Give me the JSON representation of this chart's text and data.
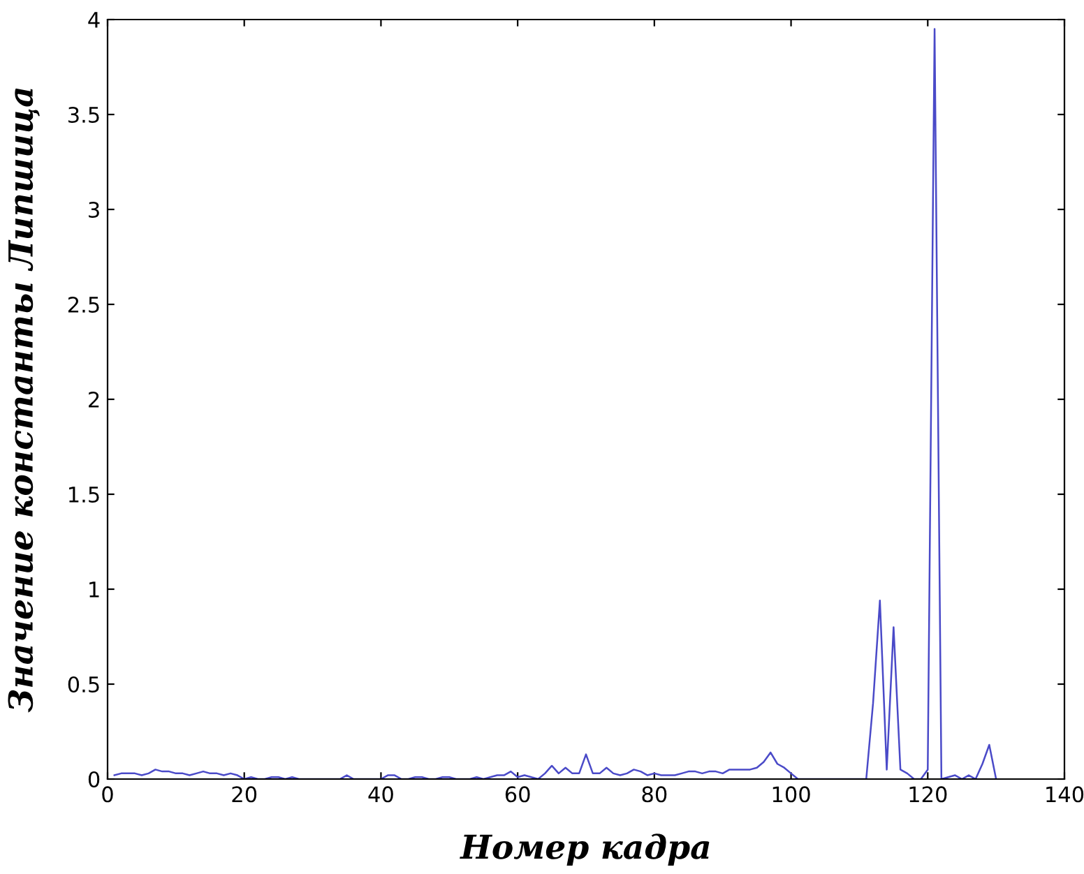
{
  "chart_data": {
    "type": "line",
    "xlabel": "Номер кадра",
    "ylabel": "Значение константы Липшица",
    "x": [
      1,
      2,
      3,
      4,
      5,
      6,
      7,
      8,
      9,
      10,
      11,
      12,
      13,
      14,
      15,
      16,
      17,
      18,
      19,
      20,
      21,
      22,
      23,
      24,
      25,
      26,
      27,
      28,
      29,
      30,
      31,
      32,
      33,
      34,
      35,
      36,
      37,
      38,
      39,
      40,
      41,
      42,
      43,
      44,
      45,
      46,
      47,
      48,
      49,
      50,
      51,
      52,
      53,
      54,
      55,
      56,
      57,
      58,
      59,
      60,
      61,
      62,
      63,
      64,
      65,
      66,
      67,
      68,
      69,
      70,
      71,
      72,
      73,
      74,
      75,
      76,
      77,
      78,
      79,
      80,
      81,
      82,
      83,
      84,
      85,
      86,
      87,
      88,
      89,
      90,
      91,
      92,
      93,
      94,
      95,
      96,
      97,
      98,
      99,
      100,
      101,
      102,
      103,
      104,
      105,
      106,
      107,
      108,
      109,
      110,
      111,
      112,
      113,
      114,
      115,
      116,
      117,
      118,
      119,
      120,
      121,
      122,
      123,
      124,
      125,
      126,
      127,
      128,
      129,
      130
    ],
    "series": [
      {
        "color": "#4a4ac8",
        "values": [
          0.02,
          0.03,
          0.03,
          0.03,
          0.02,
          0.03,
          0.05,
          0.04,
          0.04,
          0.03,
          0.03,
          0.02,
          0.03,
          0.04,
          0.03,
          0.03,
          0.02,
          0.03,
          0.02,
          0.0,
          0.01,
          0.0,
          0.0,
          0.01,
          0.01,
          0.0,
          0.01,
          0.0,
          0.0,
          0.0,
          0.0,
          0.0,
          0.0,
          0.0,
          0.02,
          0.0,
          0.0,
          0.0,
          0.0,
          0.0,
          0.02,
          0.02,
          0.0,
          0.0,
          0.01,
          0.01,
          0.0,
          0.0,
          0.01,
          0.01,
          0.0,
          0.0,
          0.0,
          0.01,
          0.0,
          0.01,
          0.02,
          0.02,
          0.04,
          0.01,
          0.02,
          0.01,
          0.0,
          0.03,
          0.07,
          0.03,
          0.06,
          0.03,
          0.03,
          0.13,
          0.03,
          0.03,
          0.06,
          0.03,
          0.02,
          0.03,
          0.05,
          0.04,
          0.02,
          0.03,
          0.02,
          0.02,
          0.02,
          0.03,
          0.04,
          0.04,
          0.03,
          0.04,
          0.04,
          0.03,
          0.05,
          0.05,
          0.05,
          0.05,
          0.06,
          0.09,
          0.14,
          0.08,
          0.06,
          0.03,
          0.0,
          0.0,
          0.0,
          0.0,
          0.0,
          0.0,
          0.0,
          0.0,
          0.0,
          0.0,
          0.0,
          0.4,
          0.94,
          0.05,
          0.8,
          0.05,
          0.03,
          0.0,
          0.0,
          0.05,
          3.95,
          0.0,
          0.01,
          0.02,
          0.0,
          0.02,
          0.0,
          0.08,
          0.18,
          0.0
        ]
      }
    ],
    "xlim": [
      0,
      140
    ],
    "xticks": [
      0,
      20,
      40,
      60,
      80,
      100,
      120,
      140
    ],
    "ylim": [
      0,
      4
    ],
    "yticks": [
      0,
      0.5,
      1,
      1.5,
      2,
      2.5,
      3,
      3.5,
      4
    ],
    "grid": false,
    "legend": false,
    "marker": "none",
    "line_style": "solid"
  }
}
